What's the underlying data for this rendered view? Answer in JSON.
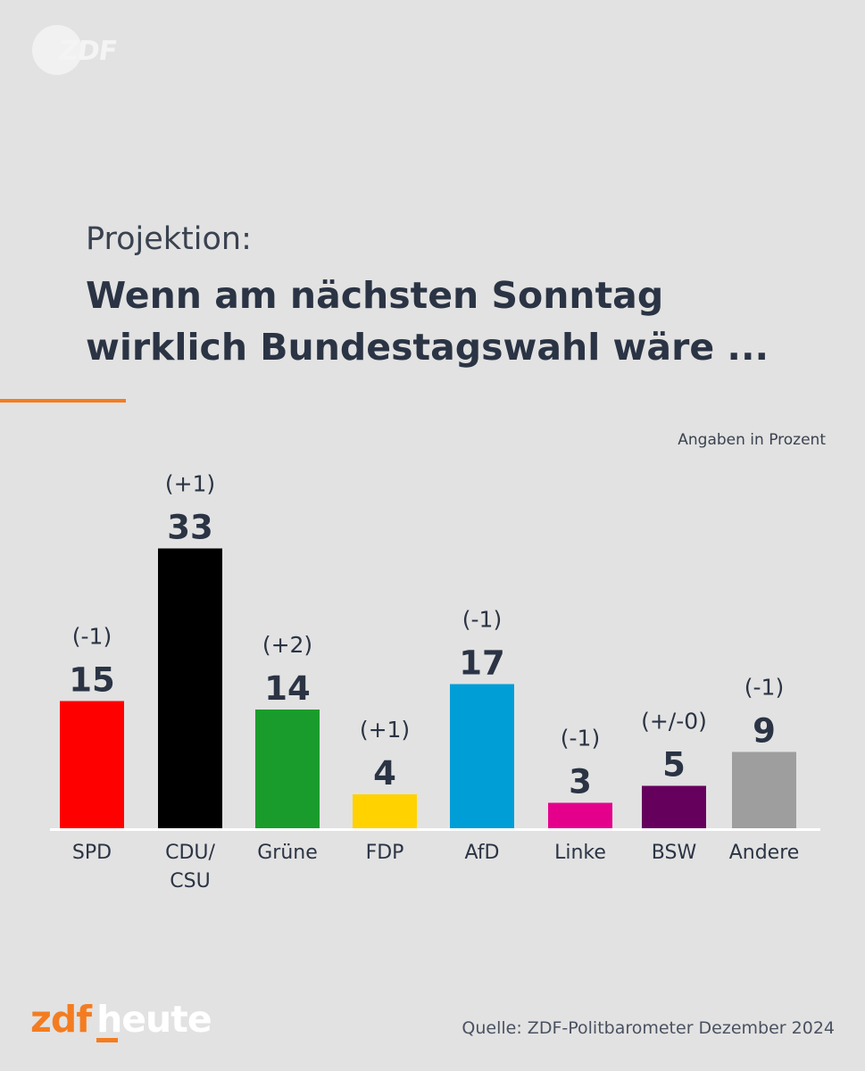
{
  "header": {
    "logo_text": "ZDF",
    "subtitle": "Projektion:",
    "title_lines": [
      "Wenn am nächsten Sonntag",
      "wirklich Bundestagswahl wäre ..."
    ]
  },
  "unit_note": "Angaben in Prozent",
  "colors": {
    "background": "#e2e2e2",
    "accent": "#f47c20",
    "text": "#2b3444"
  },
  "chart_data": {
    "type": "bar",
    "unit": "Prozent",
    "ylim": [
      0,
      33
    ],
    "grid": false,
    "categories": [
      {
        "label_lines": [
          "SPD"
        ],
        "value": 15,
        "change": "(-1)",
        "color": "#ff0000"
      },
      {
        "label_lines": [
          "CDU/",
          "CSU"
        ],
        "value": 33,
        "change": "(+1)",
        "color": "#000000"
      },
      {
        "label_lines": [
          "Grüne"
        ],
        "value": 14,
        "change": "(+2)",
        "color": "#1a9c2c"
      },
      {
        "label_lines": [
          "FDP"
        ],
        "value": 4,
        "change": "(+1)",
        "color": "#ffd200"
      },
      {
        "label_lines": [
          "AfD"
        ],
        "value": 17,
        "change": "(-1)",
        "color": "#009ed6"
      },
      {
        "label_lines": [
          "Linke"
        ],
        "value": 3,
        "change": "(-1)",
        "color": "#e5008c"
      },
      {
        "label_lines": [
          "BSW"
        ],
        "value": 5,
        "change": "(+/-0)",
        "color": "#65005d"
      },
      {
        "label_lines": [
          "Andere"
        ],
        "value": 9,
        "change": "(-1)",
        "color": "#9e9e9e"
      }
    ]
  },
  "footer": {
    "brand_part1": "zdf",
    "brand_part2": "heute",
    "source": "Quelle: ZDF-Politbarometer Dezember 2024"
  }
}
